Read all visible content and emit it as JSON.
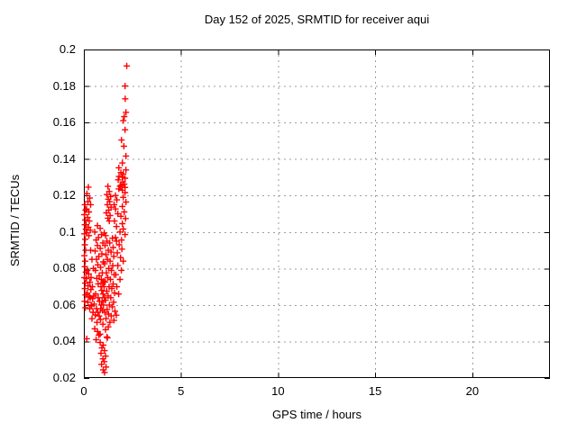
{
  "page": {
    "background": "#ffffff"
  },
  "chart_data": {
    "type": "scatter",
    "title": "Day 152 of 2025, SRMTID for receiver aqui",
    "xlabel": "GPS time / hours",
    "ylabel": "SRMTID / TECUs",
    "xlim": [
      0,
      24
    ],
    "ylim": [
      0.02,
      0.2
    ],
    "xticks": [
      {
        "v": 0,
        "label": "0"
      },
      {
        "v": 5,
        "label": "5"
      },
      {
        "v": 10,
        "label": "10"
      },
      {
        "v": 15,
        "label": "15"
      },
      {
        "v": 20,
        "label": "20"
      }
    ],
    "yticks": [
      {
        "v": 0.2,
        "label": "0.2"
      },
      {
        "v": 0.18,
        "label": "0.18"
      },
      {
        "v": 0.16,
        "label": "0.16"
      },
      {
        "v": 0.14,
        "label": "0.14"
      },
      {
        "v": 0.12,
        "label": "0.12"
      },
      {
        "v": 0.1,
        "label": "0.1"
      },
      {
        "v": 0.08,
        "label": "0.08"
      },
      {
        "v": 0.06,
        "label": "0.06"
      },
      {
        "v": 0.04,
        "label": "0.04"
      },
      {
        "v": 0.02,
        "label": "0.02"
      }
    ],
    "grid": true,
    "legend": "none",
    "colors": {
      "marker": "#ff0000",
      "grid": "#9e9e9e",
      "border": "#000000",
      "text": "#000000"
    },
    "marker": {
      "shape": "plus",
      "size": 7,
      "stroke_width": 1.4
    },
    "series": [
      {
        "name": "SRMTID",
        "points": [
          [
            2.21,
            0.191
          ],
          [
            2.12,
            0.18
          ],
          [
            2.13,
            0.173
          ],
          [
            2.17,
            0.1656
          ],
          [
            2.08,
            0.1632
          ],
          [
            2.03,
            0.161
          ],
          [
            2.12,
            0.156
          ],
          [
            1.94,
            0.1504
          ],
          [
            2.06,
            0.147
          ],
          [
            2.17,
            0.1416
          ],
          [
            1.98,
            0.1378
          ],
          [
            1.8,
            0.1352
          ],
          [
            2.17,
            0.134
          ],
          [
            1.91,
            0.1326
          ],
          [
            2.03,
            0.1318
          ],
          [
            1.81,
            0.1304
          ],
          [
            1.98,
            0.13
          ],
          [
            2.12,
            0.1295
          ],
          [
            1.77,
            0.1286
          ],
          [
            2.0,
            0.1274
          ],
          [
            2.08,
            0.1262
          ],
          [
            1.91,
            0.1256
          ],
          [
            1.86,
            0.1251
          ],
          [
            2.12,
            0.1244
          ],
          [
            1.8,
            0.1236
          ],
          [
            1.98,
            0.1229
          ],
          [
            1.24,
            0.125
          ],
          [
            1.31,
            0.1222
          ],
          [
            1.19,
            0.1205
          ],
          [
            1.38,
            0.1194
          ],
          [
            1.26,
            0.118
          ],
          [
            1.33,
            0.1166
          ],
          [
            1.21,
            0.115
          ],
          [
            1.4,
            0.1136
          ],
          [
            1.28,
            0.112
          ],
          [
            1.16,
            0.1105
          ],
          [
            1.35,
            0.109
          ],
          [
            1.24,
            0.1076
          ],
          [
            1.31,
            0.106
          ],
          [
            2.12,
            0.1216
          ],
          [
            1.63,
            0.12
          ],
          [
            2.03,
            0.119
          ],
          [
            1.7,
            0.1176
          ],
          [
            2.17,
            0.1164
          ],
          [
            1.56,
            0.115
          ],
          [
            1.98,
            0.114
          ],
          [
            1.63,
            0.1126
          ],
          [
            2.08,
            0.111
          ],
          [
            1.75,
            0.11
          ],
          [
            1.91,
            0.1086
          ],
          [
            2.15,
            0.1074
          ],
          [
            1.58,
            0.106
          ],
          [
            1.98,
            0.1046
          ],
          [
            1.68,
            0.103
          ],
          [
            2.03,
            0.1016
          ],
          [
            1.86,
            0.1
          ],
          [
            2.12,
            0.0986
          ],
          [
            1.63,
            0.097
          ],
          [
            1.94,
            0.0956
          ],
          [
            0.23,
            0.1246
          ],
          [
            0.16,
            0.121
          ],
          [
            0.3,
            0.1186
          ],
          [
            0.21,
            0.1166
          ],
          [
            0.35,
            0.115
          ],
          [
            0.14,
            0.1126
          ],
          [
            0.26,
            0.111
          ],
          [
            0.19,
            0.108
          ],
          [
            0.28,
            0.106
          ],
          [
            0.12,
            0.104
          ],
          [
            0.23,
            0.1026
          ],
          [
            0.33,
            0.101
          ],
          [
            0.16,
            0.0996
          ],
          [
            0.26,
            0.098
          ],
          [
            0.05,
            0.115
          ],
          [
            0.09,
            0.112
          ],
          [
            0.03,
            0.1095
          ],
          [
            0.07,
            0.1066
          ],
          [
            0.05,
            0.104
          ],
          [
            0.1,
            0.1015
          ],
          [
            0.03,
            0.099
          ],
          [
            0.07,
            0.096
          ],
          [
            0.05,
            0.093
          ],
          [
            0.09,
            0.09
          ],
          [
            0.03,
            0.087
          ],
          [
            0.07,
            0.084
          ],
          [
            0.05,
            0.081
          ],
          [
            0.1,
            0.078
          ],
          [
            0.03,
            0.075
          ],
          [
            0.07,
            0.072
          ],
          [
            0.05,
            0.069
          ],
          [
            0.09,
            0.0655
          ],
          [
            0.04,
            0.062
          ],
          [
            0.08,
            0.0585
          ],
          [
            0.7,
            0.1035
          ],
          [
            0.84,
            0.102
          ],
          [
            0.56,
            0.1
          ],
          [
            0.91,
            0.0986
          ],
          [
            0.75,
            0.097
          ],
          [
            0.63,
            0.0956
          ],
          [
            0.98,
            0.094
          ],
          [
            0.7,
            0.0926
          ],
          [
            0.84,
            0.091
          ],
          [
            0.58,
            0.0896
          ],
          [
            0.93,
            0.088
          ],
          [
            0.77,
            0.0866
          ],
          [
            0.65,
            0.085
          ],
          [
            1.0,
            0.0836
          ],
          [
            0.72,
            0.082
          ],
          [
            0.86,
            0.0806
          ],
          [
            0.6,
            0.079
          ],
          [
            0.95,
            0.0776
          ],
          [
            0.79,
            0.076
          ],
          [
            0.67,
            0.0746
          ],
          [
            1.02,
            0.073
          ],
          [
            0.74,
            0.0716
          ],
          [
            0.88,
            0.07
          ],
          [
            1.05,
            0.0995
          ],
          [
            1.12,
            0.098
          ],
          [
            1.47,
            0.0966
          ],
          [
            1.19,
            0.095
          ],
          [
            1.33,
            0.094
          ],
          [
            1.09,
            0.0926
          ],
          [
            1.51,
            0.0915
          ],
          [
            1.26,
            0.09
          ],
          [
            1.4,
            0.089
          ],
          [
            1.14,
            0.0876
          ],
          [
            1.54,
            0.0866
          ],
          [
            1.21,
            0.085
          ],
          [
            1.35,
            0.084
          ],
          [
            1.07,
            0.0826
          ],
          [
            1.49,
            0.0815
          ],
          [
            1.28,
            0.08
          ],
          [
            1.42,
            0.079
          ],
          [
            1.16,
            0.0776
          ],
          [
            1.56,
            0.0766
          ],
          [
            1.23,
            0.075
          ],
          [
            1.37,
            0.074
          ],
          [
            1.1,
            0.0726
          ],
          [
            1.51,
            0.0715
          ],
          [
            1.3,
            0.07
          ],
          [
            1.44,
            0.069
          ],
          [
            1.18,
            0.0676
          ],
          [
            1.58,
            0.0666
          ],
          [
            1.25,
            0.065
          ],
          [
            1.39,
            0.064
          ],
          [
            1.12,
            0.0626
          ],
          [
            1.53,
            0.0615
          ],
          [
            1.32,
            0.06
          ],
          [
            1.46,
            0.059
          ],
          [
            1.2,
            0.0576
          ],
          [
            1.6,
            0.0566
          ],
          [
            1.27,
            0.055
          ],
          [
            1.41,
            0.054
          ],
          [
            1.14,
            0.0526
          ],
          [
            1.55,
            0.0516
          ],
          [
            1.34,
            0.0505
          ],
          [
            0.35,
            0.09
          ],
          [
            0.42,
            0.085
          ],
          [
            0.49,
            0.08
          ],
          [
            0.37,
            0.075
          ],
          [
            0.44,
            0.07
          ],
          [
            0.51,
            0.065
          ],
          [
            0.4,
            0.06
          ],
          [
            0.47,
            0.056
          ],
          [
            0.33,
            0.064
          ],
          [
            0.3,
            0.058
          ],
          [
            0.9,
            0.074
          ],
          [
            0.97,
            0.072
          ],
          [
            1.04,
            0.07
          ],
          [
            0.92,
            0.068
          ],
          [
            0.99,
            0.066
          ],
          [
            1.06,
            0.064
          ],
          [
            0.94,
            0.062
          ],
          [
            1.01,
            0.06
          ],
          [
            0.87,
            0.058
          ],
          [
            1.08,
            0.056
          ],
          [
            1.68,
            0.095
          ],
          [
            1.82,
            0.093
          ],
          [
            1.96,
            0.0906
          ],
          [
            1.72,
            0.0886
          ],
          [
            1.89,
            0.086
          ],
          [
            2.03,
            0.084
          ],
          [
            1.75,
            0.0816
          ],
          [
            1.93,
            0.079
          ],
          [
            1.65,
            0.0766
          ],
          [
            1.86,
            0.074
          ],
          [
            1.7,
            0.07
          ],
          [
            1.79,
            0.066
          ],
          [
            1.67,
            0.0544
          ],
          [
            0.18,
            0.079
          ],
          [
            0.25,
            0.077
          ],
          [
            0.13,
            0.0745
          ],
          [
            0.31,
            0.0725
          ],
          [
            0.22,
            0.0705
          ],
          [
            0.36,
            0.0685
          ],
          [
            0.17,
            0.0665
          ],
          [
            0.28,
            0.0645
          ],
          [
            0.21,
            0.0615
          ],
          [
            0.38,
            0.0595
          ],
          [
            0.45,
            0.0635
          ],
          [
            0.53,
            0.0605
          ],
          [
            0.48,
            0.056
          ],
          [
            0.59,
            0.0545
          ],
          [
            0.42,
            0.0525
          ],
          [
            0.65,
            0.058
          ],
          [
            0.72,
            0.056
          ],
          [
            0.79,
            0.054
          ],
          [
            0.86,
            0.052
          ],
          [
            0.68,
            0.0505
          ],
          [
            0.61,
            0.066
          ],
          [
            0.74,
            0.064
          ],
          [
            0.81,
            0.062
          ],
          [
            0.9,
            0.06
          ],
          [
            0.96,
            0.057
          ],
          [
            0.56,
            0.047
          ],
          [
            0.98,
            0.0495
          ],
          [
            1.26,
            0.048
          ],
          [
            0.7,
            0.0455
          ],
          [
            1.12,
            0.0465
          ],
          [
            0.84,
            0.044
          ],
          [
            0.77,
            0.0435
          ],
          [
            1.19,
            0.0425
          ],
          [
            1.21,
            0.042
          ],
          [
            0.63,
            0.041
          ],
          [
            0.15,
            0.0415
          ],
          [
            0.84,
            0.0395
          ],
          [
            1.0,
            0.038
          ],
          [
            0.93,
            0.0365
          ],
          [
            1.07,
            0.035
          ],
          [
            0.88,
            0.0335
          ],
          [
            1.12,
            0.032
          ],
          [
            0.98,
            0.0305
          ],
          [
            1.05,
            0.029
          ],
          [
            0.91,
            0.0275
          ],
          [
            1.14,
            0.026
          ],
          [
            1.0,
            0.0245
          ],
          [
            1.07,
            0.023
          ]
        ]
      }
    ]
  }
}
